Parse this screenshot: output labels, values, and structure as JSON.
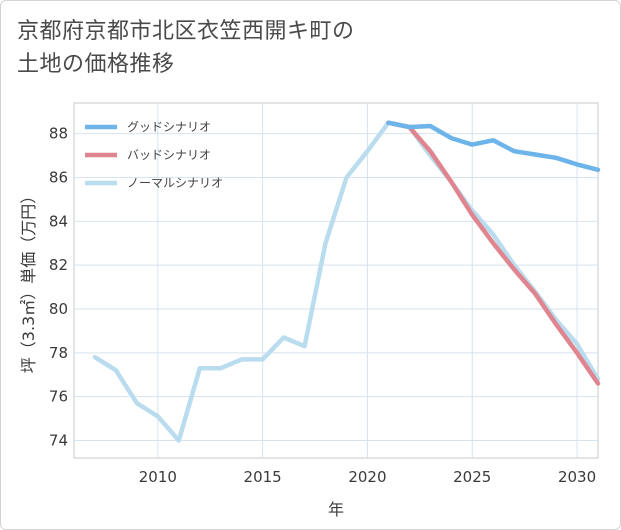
{
  "title_lines": [
    "京都府京都市北区衣笠西開キ町の",
    "土地の価格推移"
  ],
  "chart_data": {
    "type": "line",
    "title": "京都府京都市北区衣笠西開キ町の土地の価格推移",
    "xlabel": "年",
    "ylabel": "坪（3.3㎡）単価（万円）",
    "xlim": [
      2006,
      2031
    ],
    "ylim": [
      73.2,
      89.4
    ],
    "xticks": [
      2010,
      2015,
      2020,
      2025,
      2030
    ],
    "yticks": [
      74,
      76,
      78,
      80,
      82,
      84,
      86,
      88
    ],
    "legend_position": "top-left",
    "series": [
      {
        "name": "グッドシナリオ",
        "color": "#6cb4ea",
        "x": [
          2021,
          2022,
          2023,
          2024,
          2025,
          2026,
          2027,
          2028,
          2029,
          2030,
          2031
        ],
        "y": [
          88.5,
          88.3,
          88.35,
          87.8,
          87.5,
          87.7,
          87.2,
          87.05,
          86.9,
          86.6,
          86.35
        ]
      },
      {
        "name": "バッドシナリオ",
        "color": "#e0858f",
        "x": [
          2021,
          2022,
          2023,
          2024,
          2025,
          2026,
          2027,
          2028,
          2029,
          2030,
          2031
        ],
        "y": [
          88.5,
          88.3,
          87.2,
          85.8,
          84.3,
          83.0,
          81.8,
          80.7,
          79.3,
          78.0,
          76.6
        ]
      },
      {
        "name": "ノーマルシナリオ",
        "color": "#b9dcee",
        "x": [
          2007,
          2008,
          2009,
          2010,
          2011,
          2012,
          2013,
          2014,
          2015,
          2016,
          2017,
          2018,
          2019,
          2020,
          2021,
          2022,
          2023,
          2024,
          2025,
          2026,
          2027,
          2028,
          2029,
          2030,
          2031
        ],
        "y": [
          77.8,
          77.2,
          75.7,
          75.1,
          74.0,
          77.3,
          77.3,
          77.7,
          77.7,
          78.7,
          78.3,
          83.0,
          86.0,
          87.2,
          88.5,
          88.3,
          87.0,
          85.8,
          84.5,
          83.4,
          82.0,
          80.8,
          79.5,
          78.4,
          76.8
        ]
      }
    ]
  }
}
